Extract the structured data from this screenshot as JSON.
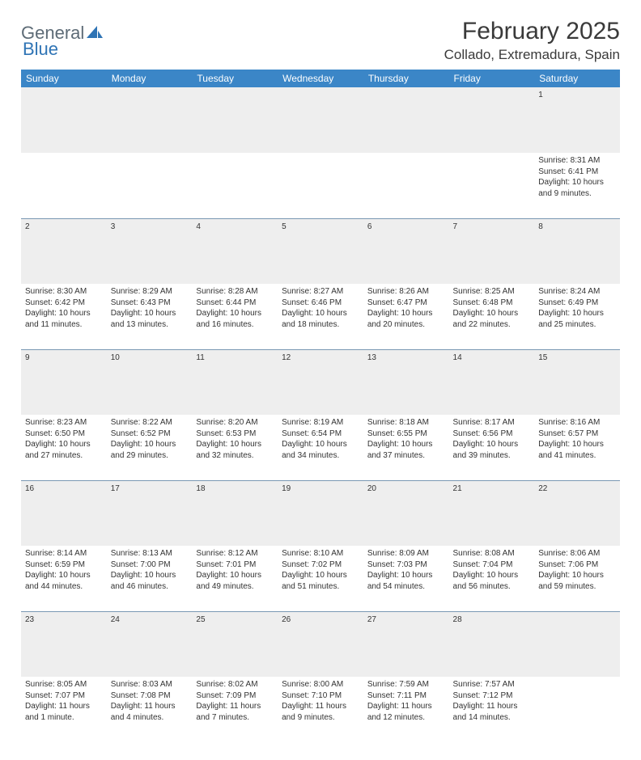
{
  "brand": {
    "part1": "General",
    "part2": "Blue"
  },
  "title": "February 2025",
  "location": "Collado, Extremadura, Spain",
  "style": {
    "header_bg": "#3b86c7",
    "header_text": "#ffffff",
    "daynum_bg": "#eeeeee",
    "border_color": "#7a98b3",
    "body_text": "#333333",
    "title_color": "#3a3a3a",
    "logo_gray": "#5d6b76",
    "logo_blue": "#2f74b5",
    "font_family": "Arial",
    "title_fontsize": 30,
    "location_fontsize": 17,
    "header_fontsize": 12,
    "cell_fontsize": 10
  },
  "days_of_week": [
    "Sunday",
    "Monday",
    "Tuesday",
    "Wednesday",
    "Thursday",
    "Friday",
    "Saturday"
  ],
  "weeks": [
    [
      null,
      null,
      null,
      null,
      null,
      null,
      {
        "n": "1",
        "sr": "Sunrise: 8:31 AM",
        "ss": "Sunset: 6:41 PM",
        "dl": "Daylight: 10 hours and 9 minutes."
      }
    ],
    [
      {
        "n": "2",
        "sr": "Sunrise: 8:30 AM",
        "ss": "Sunset: 6:42 PM",
        "dl": "Daylight: 10 hours and 11 minutes."
      },
      {
        "n": "3",
        "sr": "Sunrise: 8:29 AM",
        "ss": "Sunset: 6:43 PM",
        "dl": "Daylight: 10 hours and 13 minutes."
      },
      {
        "n": "4",
        "sr": "Sunrise: 8:28 AM",
        "ss": "Sunset: 6:44 PM",
        "dl": "Daylight: 10 hours and 16 minutes."
      },
      {
        "n": "5",
        "sr": "Sunrise: 8:27 AM",
        "ss": "Sunset: 6:46 PM",
        "dl": "Daylight: 10 hours and 18 minutes."
      },
      {
        "n": "6",
        "sr": "Sunrise: 8:26 AM",
        "ss": "Sunset: 6:47 PM",
        "dl": "Daylight: 10 hours and 20 minutes."
      },
      {
        "n": "7",
        "sr": "Sunrise: 8:25 AM",
        "ss": "Sunset: 6:48 PM",
        "dl": "Daylight: 10 hours and 22 minutes."
      },
      {
        "n": "8",
        "sr": "Sunrise: 8:24 AM",
        "ss": "Sunset: 6:49 PM",
        "dl": "Daylight: 10 hours and 25 minutes."
      }
    ],
    [
      {
        "n": "9",
        "sr": "Sunrise: 8:23 AM",
        "ss": "Sunset: 6:50 PM",
        "dl": "Daylight: 10 hours and 27 minutes."
      },
      {
        "n": "10",
        "sr": "Sunrise: 8:22 AM",
        "ss": "Sunset: 6:52 PM",
        "dl": "Daylight: 10 hours and 29 minutes."
      },
      {
        "n": "11",
        "sr": "Sunrise: 8:20 AM",
        "ss": "Sunset: 6:53 PM",
        "dl": "Daylight: 10 hours and 32 minutes."
      },
      {
        "n": "12",
        "sr": "Sunrise: 8:19 AM",
        "ss": "Sunset: 6:54 PM",
        "dl": "Daylight: 10 hours and 34 minutes."
      },
      {
        "n": "13",
        "sr": "Sunrise: 8:18 AM",
        "ss": "Sunset: 6:55 PM",
        "dl": "Daylight: 10 hours and 37 minutes."
      },
      {
        "n": "14",
        "sr": "Sunrise: 8:17 AM",
        "ss": "Sunset: 6:56 PM",
        "dl": "Daylight: 10 hours and 39 minutes."
      },
      {
        "n": "15",
        "sr": "Sunrise: 8:16 AM",
        "ss": "Sunset: 6:57 PM",
        "dl": "Daylight: 10 hours and 41 minutes."
      }
    ],
    [
      {
        "n": "16",
        "sr": "Sunrise: 8:14 AM",
        "ss": "Sunset: 6:59 PM",
        "dl": "Daylight: 10 hours and 44 minutes."
      },
      {
        "n": "17",
        "sr": "Sunrise: 8:13 AM",
        "ss": "Sunset: 7:00 PM",
        "dl": "Daylight: 10 hours and 46 minutes."
      },
      {
        "n": "18",
        "sr": "Sunrise: 8:12 AM",
        "ss": "Sunset: 7:01 PM",
        "dl": "Daylight: 10 hours and 49 minutes."
      },
      {
        "n": "19",
        "sr": "Sunrise: 8:10 AM",
        "ss": "Sunset: 7:02 PM",
        "dl": "Daylight: 10 hours and 51 minutes."
      },
      {
        "n": "20",
        "sr": "Sunrise: 8:09 AM",
        "ss": "Sunset: 7:03 PM",
        "dl": "Daylight: 10 hours and 54 minutes."
      },
      {
        "n": "21",
        "sr": "Sunrise: 8:08 AM",
        "ss": "Sunset: 7:04 PM",
        "dl": "Daylight: 10 hours and 56 minutes."
      },
      {
        "n": "22",
        "sr": "Sunrise: 8:06 AM",
        "ss": "Sunset: 7:06 PM",
        "dl": "Daylight: 10 hours and 59 minutes."
      }
    ],
    [
      {
        "n": "23",
        "sr": "Sunrise: 8:05 AM",
        "ss": "Sunset: 7:07 PM",
        "dl": "Daylight: 11 hours and 1 minute."
      },
      {
        "n": "24",
        "sr": "Sunrise: 8:03 AM",
        "ss": "Sunset: 7:08 PM",
        "dl": "Daylight: 11 hours and 4 minutes."
      },
      {
        "n": "25",
        "sr": "Sunrise: 8:02 AM",
        "ss": "Sunset: 7:09 PM",
        "dl": "Daylight: 11 hours and 7 minutes."
      },
      {
        "n": "26",
        "sr": "Sunrise: 8:00 AM",
        "ss": "Sunset: 7:10 PM",
        "dl": "Daylight: 11 hours and 9 minutes."
      },
      {
        "n": "27",
        "sr": "Sunrise: 7:59 AM",
        "ss": "Sunset: 7:11 PM",
        "dl": "Daylight: 11 hours and 12 minutes."
      },
      {
        "n": "28",
        "sr": "Sunrise: 7:57 AM",
        "ss": "Sunset: 7:12 PM",
        "dl": "Daylight: 11 hours and 14 minutes."
      },
      null
    ]
  ]
}
